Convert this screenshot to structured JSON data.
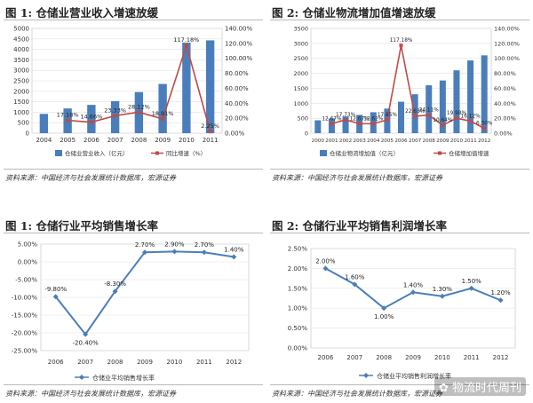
{
  "chart_data": [
    {
      "id": "c1",
      "type": "bar",
      "figure_label": "图 1:",
      "title": "仓储业营业收入增速放缓",
      "categories": [
        "2004",
        "2005",
        "2006",
        "2007",
        "2008",
        "2009",
        "2010",
        "2011"
      ],
      "series": [
        {
          "name": "仓储业营业收入（亿元）",
          "type": "bar",
          "axis": "left",
          "color": "#4a7ebb",
          "values": [
            920,
            1180,
            1350,
            1530,
            1960,
            2350,
            4320,
            4430
          ]
        },
        {
          "name": "同比增速（%）",
          "type": "line",
          "axis": "right",
          "color": "#be4b48",
          "values": [
            null,
            17.18,
            14.66,
            23.33,
            28.12,
            18.91,
            117.18,
            2.25
          ],
          "labels": [
            "",
            "17.18%",
            "14.66%",
            "23.33%",
            "28.12%",
            "18.91%",
            "117.18%",
            "2.25%"
          ]
        }
      ],
      "y_left": {
        "min": 0,
        "max": 5000,
        "step": 500,
        "ticks": [
          "0",
          "500",
          "1000",
          "1500",
          "2000",
          "2500",
          "3000",
          "3500",
          "4000",
          "4500",
          "5000"
        ]
      },
      "y_right": {
        "min": 0,
        "max": 140,
        "step": 20,
        "ticks": [
          "0.00%",
          "20.00%",
          "40.00%",
          "60.00%",
          "80.00%",
          "100.00%",
          "120.00%",
          "140.00%"
        ]
      },
      "legend": "bottom",
      "source": "资料来源：中国经济与社会发展统计数据库，宏源证券"
    },
    {
      "id": "c2",
      "type": "bar",
      "figure_label": "图 2:",
      "title": "仓储业物流增加值增速放缓",
      "categories": [
        "2000",
        "2001",
        "2002",
        "2003",
        "2004",
        "2005",
        "2006",
        "2007",
        "2008",
        "2009",
        "2010",
        "2011",
        "2012"
      ],
      "series": [
        {
          "name": "仓储业物流增加值（亿元）",
          "type": "bar",
          "axis": "left",
          "color": "#4a7ebb",
          "values": [
            430,
            490,
            560,
            610,
            700,
            820,
            1050,
            1300,
            1600,
            1760,
            2100,
            2430,
            2600
          ]
        },
        {
          "name": "仓储增加值增速",
          "type": "line",
          "axis": "right",
          "color": "#be4b48",
          "values": [
            null,
            12.67,
            17.73,
            12.67,
            12.62,
            17.65,
            117.18,
            22.63,
            24.11,
            10.64,
            19.98,
            16.12,
            6.3
          ],
          "labels": [
            "",
            "12.67%",
            "17.73%",
            "12.67%",
            "12.62%",
            "17.65%",
            "117.18%",
            "22.63%",
            "24.11%",
            "10.64%",
            "19.98%",
            "16.12%",
            "6.30%"
          ]
        }
      ],
      "y_left": {
        "min": 0,
        "max": 3500,
        "step": 500,
        "ticks": [
          "0",
          "500",
          "1000",
          "1500",
          "2000",
          "2500",
          "3000",
          "3500"
        ]
      },
      "y_right": {
        "min": 0,
        "max": 140,
        "step": 20,
        "ticks": [
          "0.00%",
          "20.00%",
          "40.00%",
          "60.00%",
          "80.00%",
          "100.00%",
          "120.00%",
          "140.00%"
        ]
      },
      "legend": "bottom",
      "source": "资料来源：中国经济与社会发展统计数据库，宏源证券"
    },
    {
      "id": "c3",
      "type": "line",
      "figure_label": "图 1:",
      "title": "仓储行业平均销售增长率",
      "categories": [
        "2006",
        "2007",
        "2008",
        "2009",
        "2010",
        "2011",
        "2012"
      ],
      "series": [
        {
          "name": "仓储业平均销售增长率",
          "color": "#4a7ebb",
          "values": [
            -9.8,
            -20.4,
            -8.3,
            2.7,
            2.9,
            2.7,
            1.4
          ],
          "labels": [
            "-9.80%",
            "-20.40%",
            "-8.30%",
            "2.70%",
            "2.90%",
            "2.70%",
            "1.40%"
          ]
        }
      ],
      "y": {
        "min": -25,
        "max": 5,
        "step": 5,
        "ticks": [
          "-25.00%",
          "-20.00%",
          "-15.00%",
          "-10.00%",
          "-5.00%",
          "0.00%",
          "5.00%"
        ]
      },
      "legend": "bottom",
      "source": "资料来源：中国经济与社会发展统计数据库，宏源证券"
    },
    {
      "id": "c4",
      "type": "line",
      "figure_label": "图 2:",
      "title": "仓储行业平均销售利润增长率",
      "categories": [
        "2006",
        "2007",
        "2008",
        "2009",
        "2010",
        "2011",
        "2012"
      ],
      "series": [
        {
          "name": "仓储业平均销售利润增长率",
          "color": "#4a7ebb",
          "values": [
            2.0,
            1.6,
            1.0,
            1.4,
            1.3,
            1.5,
            1.2
          ],
          "labels": [
            "2.00%",
            "1.60%",
            "1.00%",
            "1.40%",
            "1.30%",
            "1.50%",
            "1.20%"
          ]
        }
      ],
      "y": {
        "min": 0,
        "max": 2.5,
        "step": 0.5,
        "ticks": [
          "0.00%",
          "0.50%",
          "1.00%",
          "1.50%",
          "2.00%",
          "2.50%"
        ]
      },
      "legend": "bottom",
      "source": "资料来源：中国经济与社会发展统计数据库，宏源证券"
    }
  ],
  "watermark": "物流时代周刊"
}
